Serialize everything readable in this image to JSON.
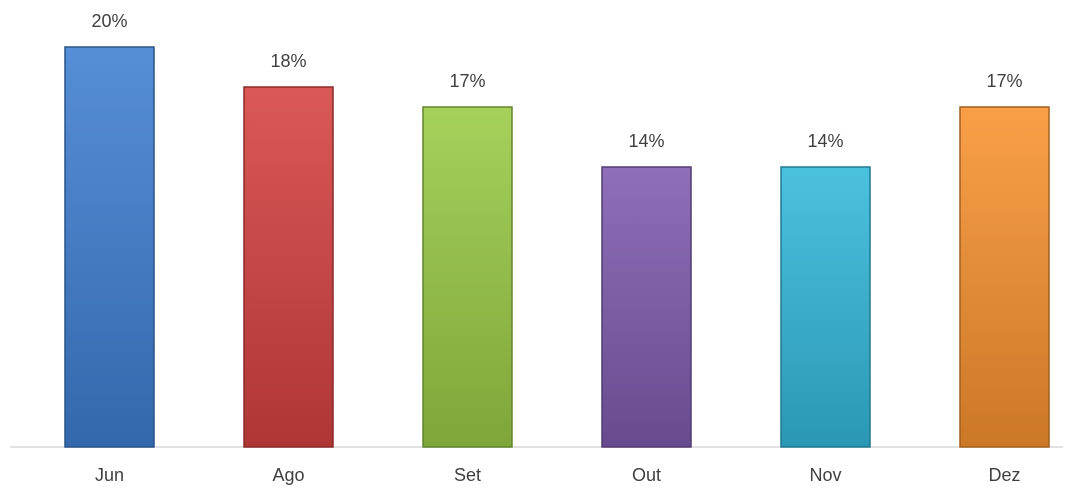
{
  "chart_data": {
    "type": "bar",
    "title": "",
    "xlabel": "",
    "ylabel": "",
    "categories": [
      "Jun",
      "Ago",
      "Set",
      "Out",
      "Nov",
      "Dez"
    ],
    "values": [
      20,
      18,
      17,
      14,
      14,
      17
    ],
    "data_labels": [
      "20%",
      "18%",
      "17%",
      "14%",
      "14%",
      "17%"
    ],
    "value_unit": "%",
    "ylim": [
      0,
      20
    ],
    "grid": false,
    "legend": "none",
    "colors": [
      "#3f7fd2",
      "#d54141",
      "#9acb45",
      "#7f5bae",
      "#33b9dc",
      "#f8922f"
    ]
  }
}
